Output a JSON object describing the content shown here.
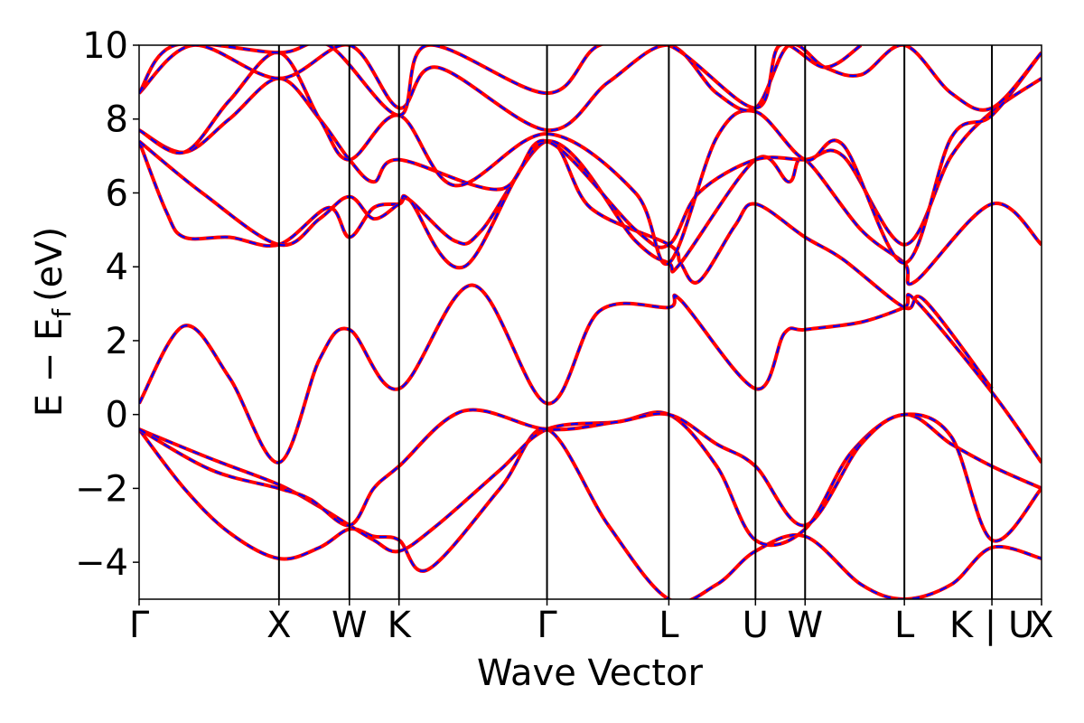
{
  "chart_data": {
    "type": "line",
    "title": "",
    "xlabel": "Wave Vector",
    "ylabel_main": "E − E",
    "ylabel_sub": "f",
    "ylabel_unit": "(eV)",
    "ylim": [
      -5,
      10
    ],
    "yticks": [
      -4,
      -2,
      0,
      2,
      4,
      6,
      8,
      10
    ],
    "ytick_labels": [
      "−4",
      "−2",
      "0",
      "2",
      "4",
      "6",
      "8",
      "10"
    ],
    "xlim": [
      0,
      1
    ],
    "kpoints": [
      {
        "label": "Γ",
        "x": 0.0
      },
      {
        "label": "X",
        "x": 0.155
      },
      {
        "label": "W",
        "x": 0.233
      },
      {
        "label": "K",
        "x": 0.288
      },
      {
        "label": "Γ",
        "x": 0.452
      },
      {
        "label": "L",
        "x": 0.587
      },
      {
        "label": "U",
        "x": 0.683
      },
      {
        "label": "W",
        "x": 0.738
      },
      {
        "label": "L",
        "x": 0.848
      },
      {
        "label": "K | U",
        "x": 0.945
      },
      {
        "label": "X",
        "x": 1.0
      }
    ],
    "series_colors": {
      "primary": "#ff0000",
      "secondary_dashed": "#0000ff"
    },
    "bands": [
      [
        [
          0.0,
          -0.4
        ],
        [
          0.05,
          -2.0
        ],
        [
          0.1,
          -3.2
        ],
        [
          0.155,
          -3.9
        ],
        [
          0.2,
          -3.6
        ],
        [
          0.233,
          -3.1
        ],
        [
          0.26,
          -3.3
        ],
        [
          0.288,
          -3.4
        ],
        [
          0.32,
          -4.2
        ],
        [
          0.4,
          -2.0
        ],
        [
          0.452,
          -0.4
        ],
        [
          0.52,
          -3.0
        ],
        [
          0.587,
          -5.0
        ],
        [
          0.64,
          -4.6
        ],
        [
          0.683,
          -3.7
        ],
        [
          0.738,
          -3.3
        ],
        [
          0.8,
          -4.6
        ],
        [
          0.848,
          -5.0
        ],
        [
          0.9,
          -4.6
        ],
        [
          0.945,
          -3.6
        ],
        [
          1.0,
          -3.9
        ]
      ],
      [
        [
          0.0,
          -0.4
        ],
        [
          0.08,
          -1.2
        ],
        [
          0.155,
          -1.9
        ],
        [
          0.2,
          -2.5
        ],
        [
          0.233,
          -3.0
        ],
        [
          0.26,
          -3.4
        ],
        [
          0.288,
          -3.7
        ],
        [
          0.33,
          -3.0
        ],
        [
          0.4,
          -1.5
        ],
        [
          0.452,
          -0.4
        ],
        [
          0.53,
          -0.2
        ],
        [
          0.587,
          0.0
        ],
        [
          0.64,
          -1.4
        ],
        [
          0.683,
          -3.4
        ],
        [
          0.738,
          -3.1
        ],
        [
          0.79,
          -1.0
        ],
        [
          0.848,
          0.0
        ],
        [
          0.9,
          -0.8
        ],
        [
          0.945,
          -1.4
        ],
        [
          1.0,
          -2.0
        ]
      ],
      [
        [
          0.0,
          -0.4
        ],
        [
          0.08,
          -1.5
        ],
        [
          0.155,
          -2.0
        ],
        [
          0.19,
          -2.3
        ],
        [
          0.233,
          -3.0
        ],
        [
          0.26,
          -2.0
        ],
        [
          0.288,
          -1.4
        ],
        [
          0.36,
          0.1
        ],
        [
          0.452,
          -0.4
        ],
        [
          0.53,
          -0.2
        ],
        [
          0.587,
          0.0
        ],
        [
          0.64,
          -0.8
        ],
        [
          0.683,
          -1.4
        ],
        [
          0.738,
          -3.0
        ],
        [
          0.8,
          -0.8
        ],
        [
          0.848,
          0.0
        ],
        [
          0.9,
          -0.6
        ],
        [
          0.945,
          -3.4
        ],
        [
          1.0,
          -2.0
        ]
      ],
      [
        [
          0.0,
          0.3
        ],
        [
          0.05,
          2.4
        ],
        [
          0.1,
          1.0
        ],
        [
          0.155,
          -1.3
        ],
        [
          0.2,
          1.5
        ],
        [
          0.233,
          2.3
        ],
        [
          0.288,
          0.7
        ],
        [
          0.37,
          3.5
        ],
        [
          0.452,
          0.3
        ],
        [
          0.51,
          2.8
        ],
        [
          0.587,
          2.9
        ],
        [
          0.6,
          3.1
        ],
        [
          0.683,
          0.7
        ],
        [
          0.715,
          2.2
        ],
        [
          0.738,
          2.3
        ],
        [
          0.8,
          2.5
        ],
        [
          0.848,
          2.9
        ],
        [
          0.86,
          3.1
        ],
        [
          0.945,
          0.6
        ],
        [
          1.0,
          -1.3
        ]
      ],
      [
        [
          0.0,
          7.4
        ],
        [
          0.03,
          5.5
        ],
        [
          0.05,
          4.8
        ],
        [
          0.1,
          4.8
        ],
        [
          0.155,
          4.6
        ],
        [
          0.21,
          5.6
        ],
        [
          0.233,
          4.8
        ],
        [
          0.26,
          5.6
        ],
        [
          0.288,
          5.7
        ],
        [
          0.3,
          5.8
        ],
        [
          0.35,
          4.7
        ],
        [
          0.38,
          5.0
        ],
        [
          0.452,
          7.4
        ],
        [
          0.5,
          5.6
        ],
        [
          0.587,
          4.6
        ],
        [
          0.6,
          4.1
        ],
        [
          0.62,
          3.6
        ],
        [
          0.66,
          5.1
        ],
        [
          0.683,
          5.7
        ],
        [
          0.738,
          4.8
        ],
        [
          0.78,
          4.2
        ],
        [
          0.848,
          2.9
        ],
        [
          0.87,
          3.1
        ],
        [
          0.945,
          0.7
        ]
      ],
      [
        [
          0.0,
          7.4
        ],
        [
          0.07,
          6.0
        ],
        [
          0.155,
          4.6
        ],
        [
          0.2,
          5.3
        ],
        [
          0.233,
          5.9
        ],
        [
          0.26,
          5.3
        ],
        [
          0.288,
          5.7
        ],
        [
          0.3,
          5.8
        ],
        [
          0.36,
          4.0
        ],
        [
          0.452,
          7.4
        ],
        [
          0.55,
          4.7
        ],
        [
          0.587,
          4.1
        ],
        [
          0.6,
          4.1
        ],
        [
          0.683,
          6.9
        ],
        [
          0.72,
          6.3
        ],
        [
          0.738,
          6.9
        ],
        [
          0.8,
          5.0
        ],
        [
          0.848,
          4.1
        ],
        [
          0.86,
          3.6
        ],
        [
          0.945,
          5.7
        ],
        [
          1.0,
          4.6
        ]
      ],
      [
        [
          0.0,
          7.7
        ],
        [
          0.05,
          7.1
        ],
        [
          0.1,
          8.0
        ],
        [
          0.155,
          9.1
        ],
        [
          0.2,
          8.0
        ],
        [
          0.233,
          6.9
        ],
        [
          0.26,
          6.3
        ],
        [
          0.288,
          6.9
        ],
        [
          0.4,
          6.1
        ],
        [
          0.452,
          7.4
        ],
        [
          0.55,
          5.0
        ],
        [
          0.587,
          4.6
        ],
        [
          0.62,
          6.0
        ],
        [
          0.683,
          6.9
        ],
        [
          0.738,
          6.9
        ],
        [
          0.78,
          7.0
        ],
        [
          0.848,
          4.6
        ],
        [
          0.9,
          7.0
        ],
        [
          0.945,
          8.2
        ],
        [
          1.0,
          9.1
        ]
      ],
      [
        [
          0.0,
          7.7
        ],
        [
          0.05,
          7.1
        ],
        [
          0.1,
          8.5
        ],
        [
          0.155,
          9.8
        ],
        [
          0.2,
          8.0
        ],
        [
          0.233,
          6.9
        ],
        [
          0.288,
          8.1
        ],
        [
          0.35,
          6.2
        ],
        [
          0.452,
          7.6
        ],
        [
          0.55,
          6.0
        ],
        [
          0.587,
          4.1
        ],
        [
          0.64,
          7.5
        ],
        [
          0.683,
          8.2
        ],
        [
          0.738,
          6.9
        ],
        [
          0.78,
          7.3
        ],
        [
          0.848,
          4.1
        ],
        [
          0.9,
          7.5
        ],
        [
          0.945,
          8.1
        ],
        [
          1.0,
          9.8
        ]
      ],
      [
        [
          0.0,
          8.7
        ],
        [
          0.06,
          10.0
        ],
        [
          0.155,
          9.1
        ],
        [
          0.233,
          10.0
        ],
        [
          0.288,
          8.3
        ],
        [
          0.33,
          9.4
        ],
        [
          0.452,
          7.7
        ],
        [
          0.52,
          9.0
        ],
        [
          0.587,
          10.0
        ],
        [
          0.64,
          8.7
        ],
        [
          0.683,
          8.3
        ],
        [
          0.72,
          10.0
        ],
        [
          0.76,
          9.4
        ],
        [
          0.8,
          9.2
        ],
        [
          0.848,
          10.0
        ],
        [
          0.9,
          8.7
        ],
        [
          0.945,
          8.3
        ],
        [
          1.0,
          9.8
        ]
      ],
      [
        [
          0.0,
          8.7
        ],
        [
          0.04,
          10.0
        ],
        [
          0.155,
          9.8
        ],
        [
          0.21,
          10.0
        ],
        [
          0.288,
          8.1
        ],
        [
          0.32,
          10.0
        ],
        [
          0.452,
          8.7
        ],
        [
          0.51,
          10.0
        ],
        [
          0.587,
          10.0
        ],
        [
          0.683,
          8.3
        ],
        [
          0.71,
          10.0
        ],
        [
          0.76,
          9.4
        ],
        [
          0.8,
          10.0
        ]
      ]
    ]
  }
}
